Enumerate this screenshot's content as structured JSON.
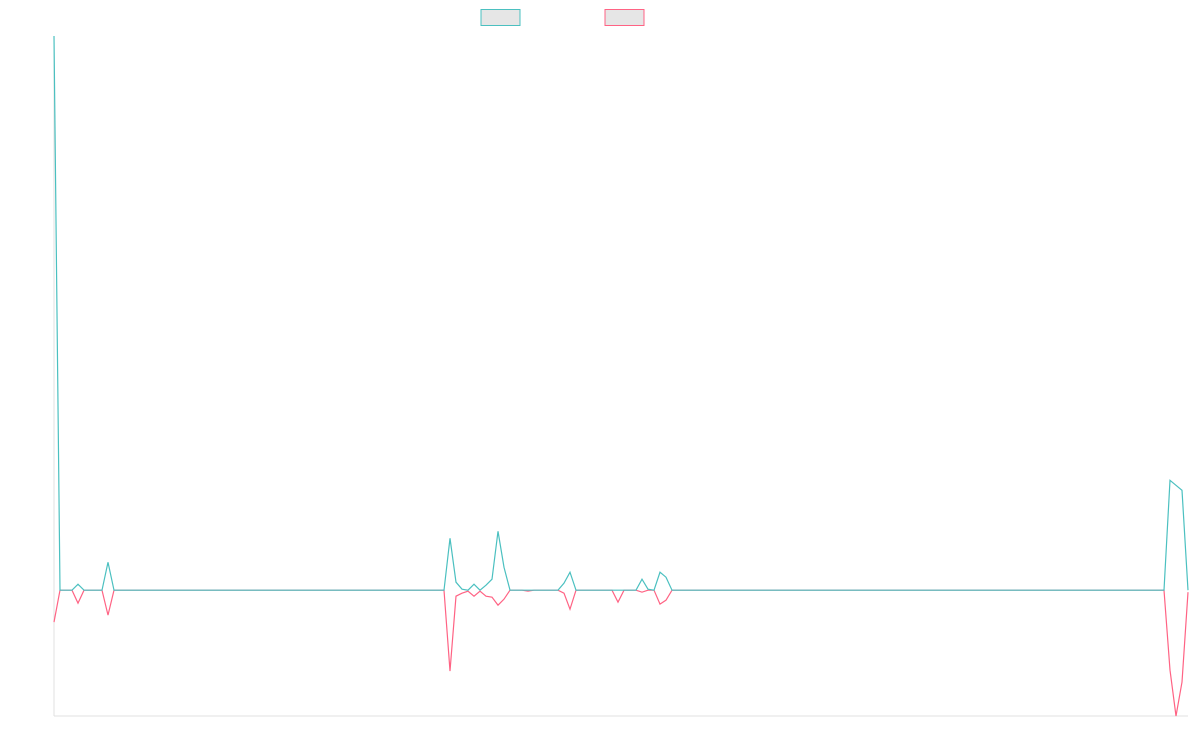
{
  "chart_data": {
    "type": "line",
    "ylim": [
      -126,
      555
    ],
    "series": [
      {
        "color": "#4bc0c0",
        "values": [
          555,
          0,
          0,
          0,
          6,
          0,
          0,
          0,
          0,
          28,
          0,
          0,
          0,
          0,
          0,
          0,
          0,
          0,
          0,
          0,
          0,
          0,
          0,
          0,
          0,
          0,
          0,
          0,
          0,
          0,
          0,
          0,
          0,
          0,
          0,
          0,
          0,
          0,
          0,
          0,
          0,
          0,
          0,
          0,
          0,
          0,
          0,
          0,
          0,
          0,
          0,
          0,
          0,
          0,
          0,
          0,
          0,
          0,
          0,
          0,
          0,
          0,
          0,
          0,
          0,
          0,
          52,
          8,
          1,
          0,
          6,
          0,
          5,
          11,
          59,
          23,
          0,
          0,
          0,
          0,
          0,
          0,
          0,
          0,
          0,
          7,
          18,
          0,
          0,
          0,
          0,
          0,
          0,
          0,
          0,
          0,
          0,
          0,
          11,
          1,
          0,
          18,
          13,
          0,
          0,
          0,
          0,
          0,
          0,
          0,
          0,
          0,
          0,
          0,
          0,
          0,
          0,
          0,
          0,
          0,
          0,
          0,
          0,
          0,
          0,
          0,
          0,
          0,
          0,
          0,
          0,
          0,
          0,
          0,
          0,
          0,
          0,
          0,
          0,
          0,
          0,
          0,
          0,
          0,
          0,
          0,
          0,
          0,
          0,
          0,
          0,
          0,
          0,
          0,
          0,
          0,
          0,
          0,
          0,
          0,
          0,
          0,
          0,
          0,
          0,
          0,
          0,
          0,
          0,
          0,
          0,
          0,
          0,
          0,
          0,
          0,
          0,
          0,
          0,
          0,
          0,
          0,
          0,
          0,
          0,
          0,
          110,
          105,
          100,
          0
        ]
      },
      {
        "color": "#ff6384",
        "values": [
          -32,
          0,
          0,
          0,
          -13,
          0,
          0,
          0,
          0,
          -25,
          0,
          0,
          0,
          0,
          0,
          0,
          0,
          0,
          0,
          0,
          0,
          0,
          0,
          0,
          0,
          0,
          0,
          0,
          0,
          0,
          0,
          0,
          0,
          0,
          0,
          0,
          0,
          0,
          0,
          0,
          0,
          0,
          0,
          0,
          0,
          0,
          0,
          0,
          0,
          0,
          0,
          0,
          0,
          0,
          0,
          0,
          0,
          0,
          0,
          0,
          0,
          0,
          0,
          0,
          0,
          0,
          -81,
          -6,
          -3,
          -1,
          -6,
          -1,
          -6,
          -7,
          -15,
          -9,
          0,
          0,
          0,
          -1,
          0,
          0,
          0,
          0,
          0,
          -3,
          -19,
          0,
          0,
          0,
          0,
          0,
          0,
          0,
          -12,
          0,
          0,
          0,
          -2,
          0,
          0,
          -14,
          -10,
          0,
          0,
          0,
          0,
          0,
          0,
          0,
          0,
          0,
          0,
          0,
          0,
          0,
          0,
          0,
          0,
          0,
          0,
          0,
          0,
          0,
          0,
          0,
          0,
          0,
          0,
          0,
          0,
          0,
          0,
          0,
          0,
          0,
          0,
          0,
          0,
          0,
          0,
          0,
          0,
          0,
          0,
          0,
          0,
          0,
          0,
          0,
          0,
          0,
          0,
          0,
          0,
          0,
          0,
          0,
          0,
          0,
          0,
          0,
          0,
          0,
          0,
          0,
          0,
          0,
          0,
          0,
          0,
          0,
          0,
          0,
          0,
          0,
          0,
          0,
          0,
          0,
          0,
          0,
          0,
          0,
          0,
          0,
          -80,
          -126,
          -92,
          -2
        ]
      }
    ]
  }
}
